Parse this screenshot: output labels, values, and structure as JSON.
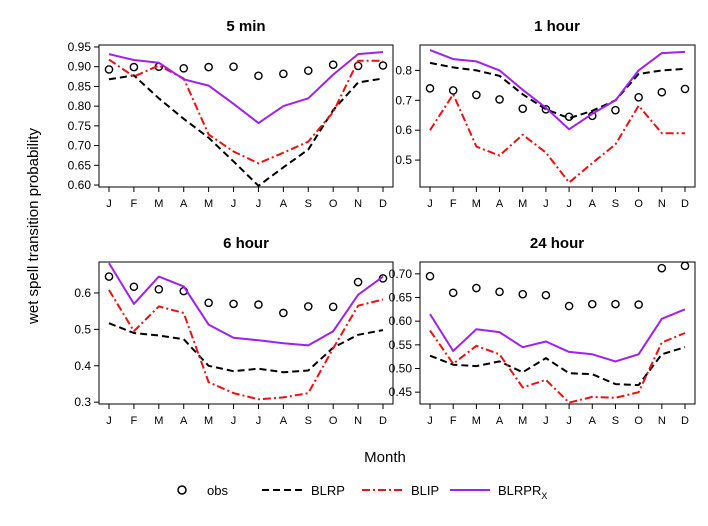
{
  "figure": {
    "ylabel": "wet spell transition probability",
    "xlabel": "Month"
  },
  "legend": {
    "entries": [
      {
        "label": "obs",
        "sub": ""
      },
      {
        "label": "BLRP",
        "sub": ""
      },
      {
        "label": "BLIP",
        "sub": ""
      },
      {
        "label": "BLRPR",
        "sub": "X"
      }
    ]
  },
  "colors": {
    "obs": "#000000",
    "BLRP": "#000000",
    "BLIP": "#ee1111",
    "BLRPRx": "#a020f0"
  },
  "chart_data": [
    {
      "type": "line",
      "title": "5 min",
      "categories": [
        "J",
        "F",
        "M",
        "A",
        "M",
        "J",
        "J",
        "A",
        "S",
        "O",
        "N",
        "D"
      ],
      "yticks": [
        0.6,
        0.65,
        0.7,
        0.75,
        0.8,
        0.85,
        0.9,
        0.95
      ],
      "ytick_labels": [
        "0.60",
        "0.65",
        "0.70",
        "0.75",
        "0.80",
        "0.85",
        "0.90",
        "0.95"
      ],
      "ylim": [
        0.595,
        0.955
      ],
      "series": [
        {
          "name": "obs",
          "style": "points",
          "values": [
            0.893,
            0.899,
            0.9,
            0.896,
            0.899,
            0.9,
            0.877,
            0.882,
            0.89,
            0.905,
            0.902,
            0.903
          ]
        },
        {
          "name": "BLRP",
          "style": "dashed",
          "values": [
            0.868,
            0.878,
            0.82,
            0.768,
            0.72,
            0.66,
            0.598,
            0.645,
            0.69,
            0.79,
            0.86,
            0.87
          ]
        },
        {
          "name": "BLIP",
          "style": "dotdash",
          "values": [
            0.918,
            0.875,
            0.903,
            0.87,
            0.728,
            0.685,
            0.655,
            0.682,
            0.71,
            0.785,
            0.915,
            0.915
          ]
        },
        {
          "name": "BLRPRx",
          "style": "solid",
          "values": [
            0.932,
            0.917,
            0.91,
            0.868,
            0.852,
            0.806,
            0.757,
            0.8,
            0.82,
            0.88,
            0.932,
            0.937
          ]
        }
      ]
    },
    {
      "type": "line",
      "title": "1 hour",
      "categories": [
        "J",
        "F",
        "M",
        "A",
        "M",
        "J",
        "J",
        "A",
        "S",
        "O",
        "N",
        "D"
      ],
      "yticks": [
        0.5,
        0.6,
        0.7,
        0.8
      ],
      "ytick_labels": [
        "0.5",
        "0.6",
        "0.7",
        "0.8"
      ],
      "ylim": [
        0.41,
        0.885
      ],
      "series": [
        {
          "name": "obs",
          "style": "points",
          "values": [
            0.74,
            0.733,
            0.718,
            0.703,
            0.672,
            0.67,
            0.645,
            0.648,
            0.667,
            0.71,
            0.727,
            0.738
          ]
        },
        {
          "name": "BLRP",
          "style": "dashed",
          "values": [
            0.825,
            0.81,
            0.8,
            0.782,
            0.72,
            0.67,
            0.64,
            0.665,
            0.7,
            0.788,
            0.8,
            0.805
          ]
        },
        {
          "name": "BLIP",
          "style": "dotdash",
          "values": [
            0.6,
            0.72,
            0.545,
            0.515,
            0.585,
            0.525,
            0.425,
            0.49,
            0.553,
            0.682,
            0.59,
            0.59
          ]
        },
        {
          "name": "BLRPRx",
          "style": "solid",
          "values": [
            0.868,
            0.838,
            0.83,
            0.8,
            0.735,
            0.675,
            0.603,
            0.655,
            0.7,
            0.8,
            0.858,
            0.862
          ]
        }
      ]
    },
    {
      "type": "line",
      "title": "6 hour",
      "categories": [
        "J",
        "F",
        "M",
        "A",
        "M",
        "J",
        "J",
        "A",
        "S",
        "O",
        "N",
        "D"
      ],
      "yticks": [
        0.3,
        0.4,
        0.5,
        0.6
      ],
      "ytick_labels": [
        "0.3",
        "0.4",
        "0.5",
        "0.6"
      ],
      "ylim": [
        0.295,
        0.685
      ],
      "series": [
        {
          "name": "obs",
          "style": "points",
          "values": [
            0.645,
            0.617,
            0.61,
            0.605,
            0.573,
            0.57,
            0.568,
            0.545,
            0.563,
            0.562,
            0.63,
            0.64
          ]
        },
        {
          "name": "BLRP",
          "style": "dashed",
          "values": [
            0.517,
            0.49,
            0.483,
            0.473,
            0.4,
            0.385,
            0.392,
            0.382,
            0.387,
            0.45,
            0.485,
            0.498
          ]
        },
        {
          "name": "BLIP",
          "style": "dotdash",
          "values": [
            0.608,
            0.495,
            0.563,
            0.545,
            0.355,
            0.325,
            0.308,
            0.313,
            0.325,
            0.448,
            0.565,
            0.582
          ]
        },
        {
          "name": "BLRPRx",
          "style": "solid",
          "values": [
            0.682,
            0.57,
            0.645,
            0.618,
            0.513,
            0.477,
            0.47,
            0.462,
            0.456,
            0.495,
            0.595,
            0.645
          ]
        }
      ]
    },
    {
      "type": "line",
      "title": "24 hour",
      "categories": [
        "J",
        "F",
        "M",
        "A",
        "M",
        "J",
        "J",
        "A",
        "S",
        "O",
        "N",
        "D"
      ],
      "yticks": [
        0.45,
        0.5,
        0.55,
        0.6,
        0.65,
        0.7
      ],
      "ytick_labels": [
        "0.45",
        "0.50",
        "0.55",
        "0.60",
        "0.65",
        "0.70"
      ],
      "ylim": [
        0.425,
        0.725
      ],
      "series": [
        {
          "name": "obs",
          "style": "points",
          "values": [
            0.695,
            0.66,
            0.67,
            0.662,
            0.657,
            0.655,
            0.632,
            0.636,
            0.636,
            0.635,
            0.712,
            0.717
          ]
        },
        {
          "name": "BLRP",
          "style": "dashed",
          "values": [
            0.527,
            0.508,
            0.505,
            0.515,
            0.492,
            0.522,
            0.49,
            0.488,
            0.467,
            0.465,
            0.53,
            0.545
          ]
        },
        {
          "name": "BLIP",
          "style": "dotdash",
          "values": [
            0.58,
            0.51,
            0.548,
            0.53,
            0.46,
            0.476,
            0.428,
            0.44,
            0.438,
            0.45,
            0.555,
            0.575
          ]
        },
        {
          "name": "BLRPRx",
          "style": "solid",
          "values": [
            0.615,
            0.537,
            0.583,
            0.577,
            0.545,
            0.557,
            0.535,
            0.53,
            0.515,
            0.53,
            0.605,
            0.625
          ]
        }
      ]
    }
  ]
}
